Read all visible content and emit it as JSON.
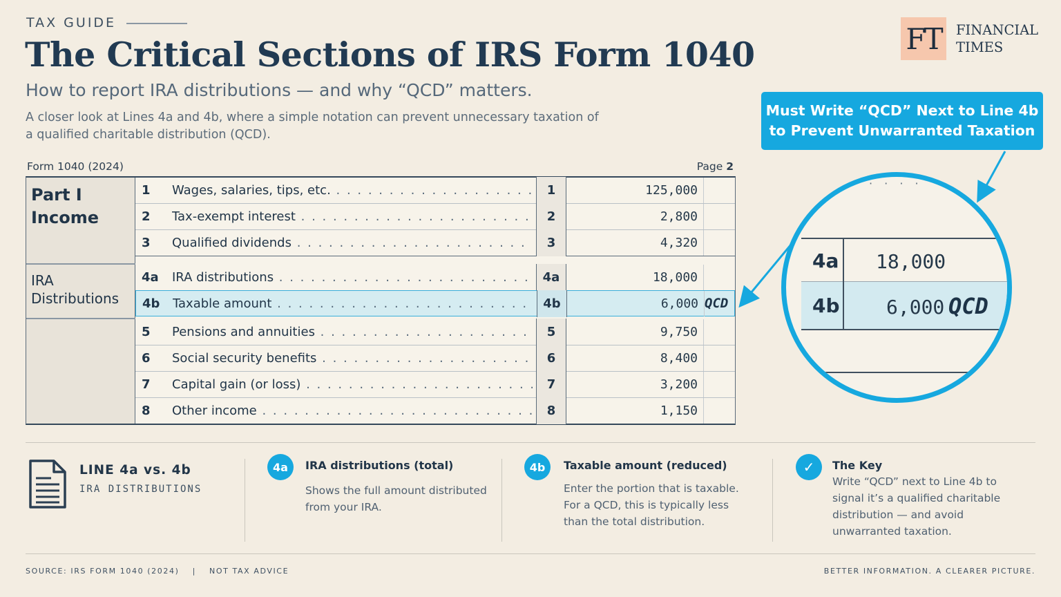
{
  "kicker": "TAX GUIDE",
  "title": "The Critical Sections of IRS Form 1040",
  "subtitle": "How to report IRA distributions — and why “QCD” matters.",
  "dek": "A closer look at Lines 4a and 4b, where a simple notation can prevent unnecessary taxation of a qualified charitable distribution (QCD).",
  "logo": {
    "mark": "FT",
    "line1": "FINANCIAL",
    "line2": "TIMES"
  },
  "callout": "Must Write “QCD” Next to Line 4b\nto Prevent Unwarranted Taxation",
  "form": {
    "label": "Form 1040 (2024)",
    "page_prefix": "Page",
    "page_number": "2",
    "part_label_1": "Part I",
    "part_label_2": "Income",
    "ira_label_1": "IRA",
    "ira_label_2": "Distributions",
    "rows": [
      {
        "num": "1",
        "desc": "Wages, salaries, tips, etc.",
        "code": "1",
        "amount": "125,000",
        "note": ""
      },
      {
        "num": "2",
        "desc": "Tax-exempt interest",
        "code": "2",
        "amount": "2,800",
        "note": ""
      },
      {
        "num": "3",
        "desc": "Qualified dividends",
        "code": "3",
        "amount": "4,320",
        "note": ""
      },
      {
        "num": "4a",
        "desc": "IRA distributions",
        "code": "4a",
        "amount": "18,000",
        "note": ""
      },
      {
        "num": "4b",
        "desc": "Taxable amount",
        "code": "4b",
        "amount": "6,000",
        "note": "QCD"
      },
      {
        "num": "5",
        "desc": "Pensions and annuities",
        "code": "5",
        "amount": "9,750",
        "note": ""
      },
      {
        "num": "6",
        "desc": "Social security benefits",
        "code": "6",
        "amount": "8,400",
        "note": ""
      },
      {
        "num": "7",
        "desc": "Capital gain (or loss)",
        "code": "7",
        "amount": "3,200",
        "note": ""
      },
      {
        "num": "8",
        "desc": "Other income",
        "code": "8",
        "amount": "1,150",
        "note": ""
      }
    ]
  },
  "zoom": {
    "row_a_code": "4a",
    "row_a_amount": "18,000",
    "row_b_code": "4b",
    "row_b_amount": "6,000",
    "row_b_note": "QCD"
  },
  "explainer": {
    "head": "LINE 4a vs. 4b",
    "sub": "IRA DISTRIBUTIONS",
    "cards": [
      {
        "badge": "4a",
        "head": "IRA distributions (total)",
        "body": "Shows the full amount distributed from your IRA."
      },
      {
        "badge": "4b",
        "head": "Taxable amount (reduced)",
        "body": "Enter the portion that is taxable. For a QCD, this is typically less than the total distribution."
      },
      {
        "badge": "✓",
        "head": "The Key",
        "body": "Write “QCD” next to Line 4b to signal it’s a qualified charitable distribution — and avoid unwarranted taxation."
      }
    ]
  },
  "footer": {
    "source": "SOURCE: IRS FORM 1040 (2024)",
    "separator": "|",
    "disclaimer": "NOT TAX ADVICE",
    "tagline": "BETTER INFORMATION. A CLEARER PICTURE."
  },
  "colors": {
    "accent": "#16a8df",
    "ink": "#213a52",
    "paper": "#f3ede2",
    "highlight": "#d5ecf1",
    "logo_bg": "#f6c7ad"
  }
}
